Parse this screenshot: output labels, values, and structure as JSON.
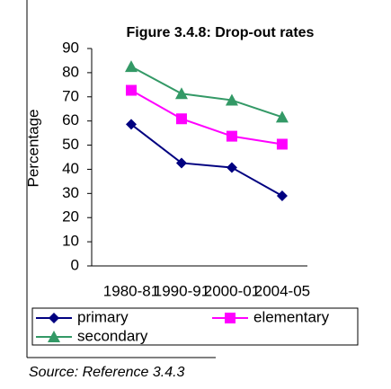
{
  "chart_data": {
    "type": "line",
    "title": "Figure 3.4.8: Drop-out rates",
    "ylabel": "Percentage",
    "categories": [
      "1980-81",
      "1990-91",
      "2000-01",
      "2004-05"
    ],
    "series": [
      {
        "name": "primary",
        "color": "#000080",
        "marker": "diamond",
        "values": [
          58.6,
          42.6,
          40.7,
          29.0
        ]
      },
      {
        "name": "elementary",
        "color": "#ff00ff",
        "marker": "square",
        "values": [
          72.7,
          60.9,
          53.7,
          50.4
        ]
      },
      {
        "name": "secondary",
        "color": "#339966",
        "marker": "triangle",
        "values": [
          82.5,
          71.3,
          68.6,
          61.6
        ]
      }
    ],
    "ylim": [
      0,
      90
    ],
    "yticks": [
      0,
      10,
      20,
      30,
      40,
      50,
      60,
      70,
      80,
      90
    ],
    "legend": "bottom",
    "source": "Source: Reference 3.4.3"
  }
}
